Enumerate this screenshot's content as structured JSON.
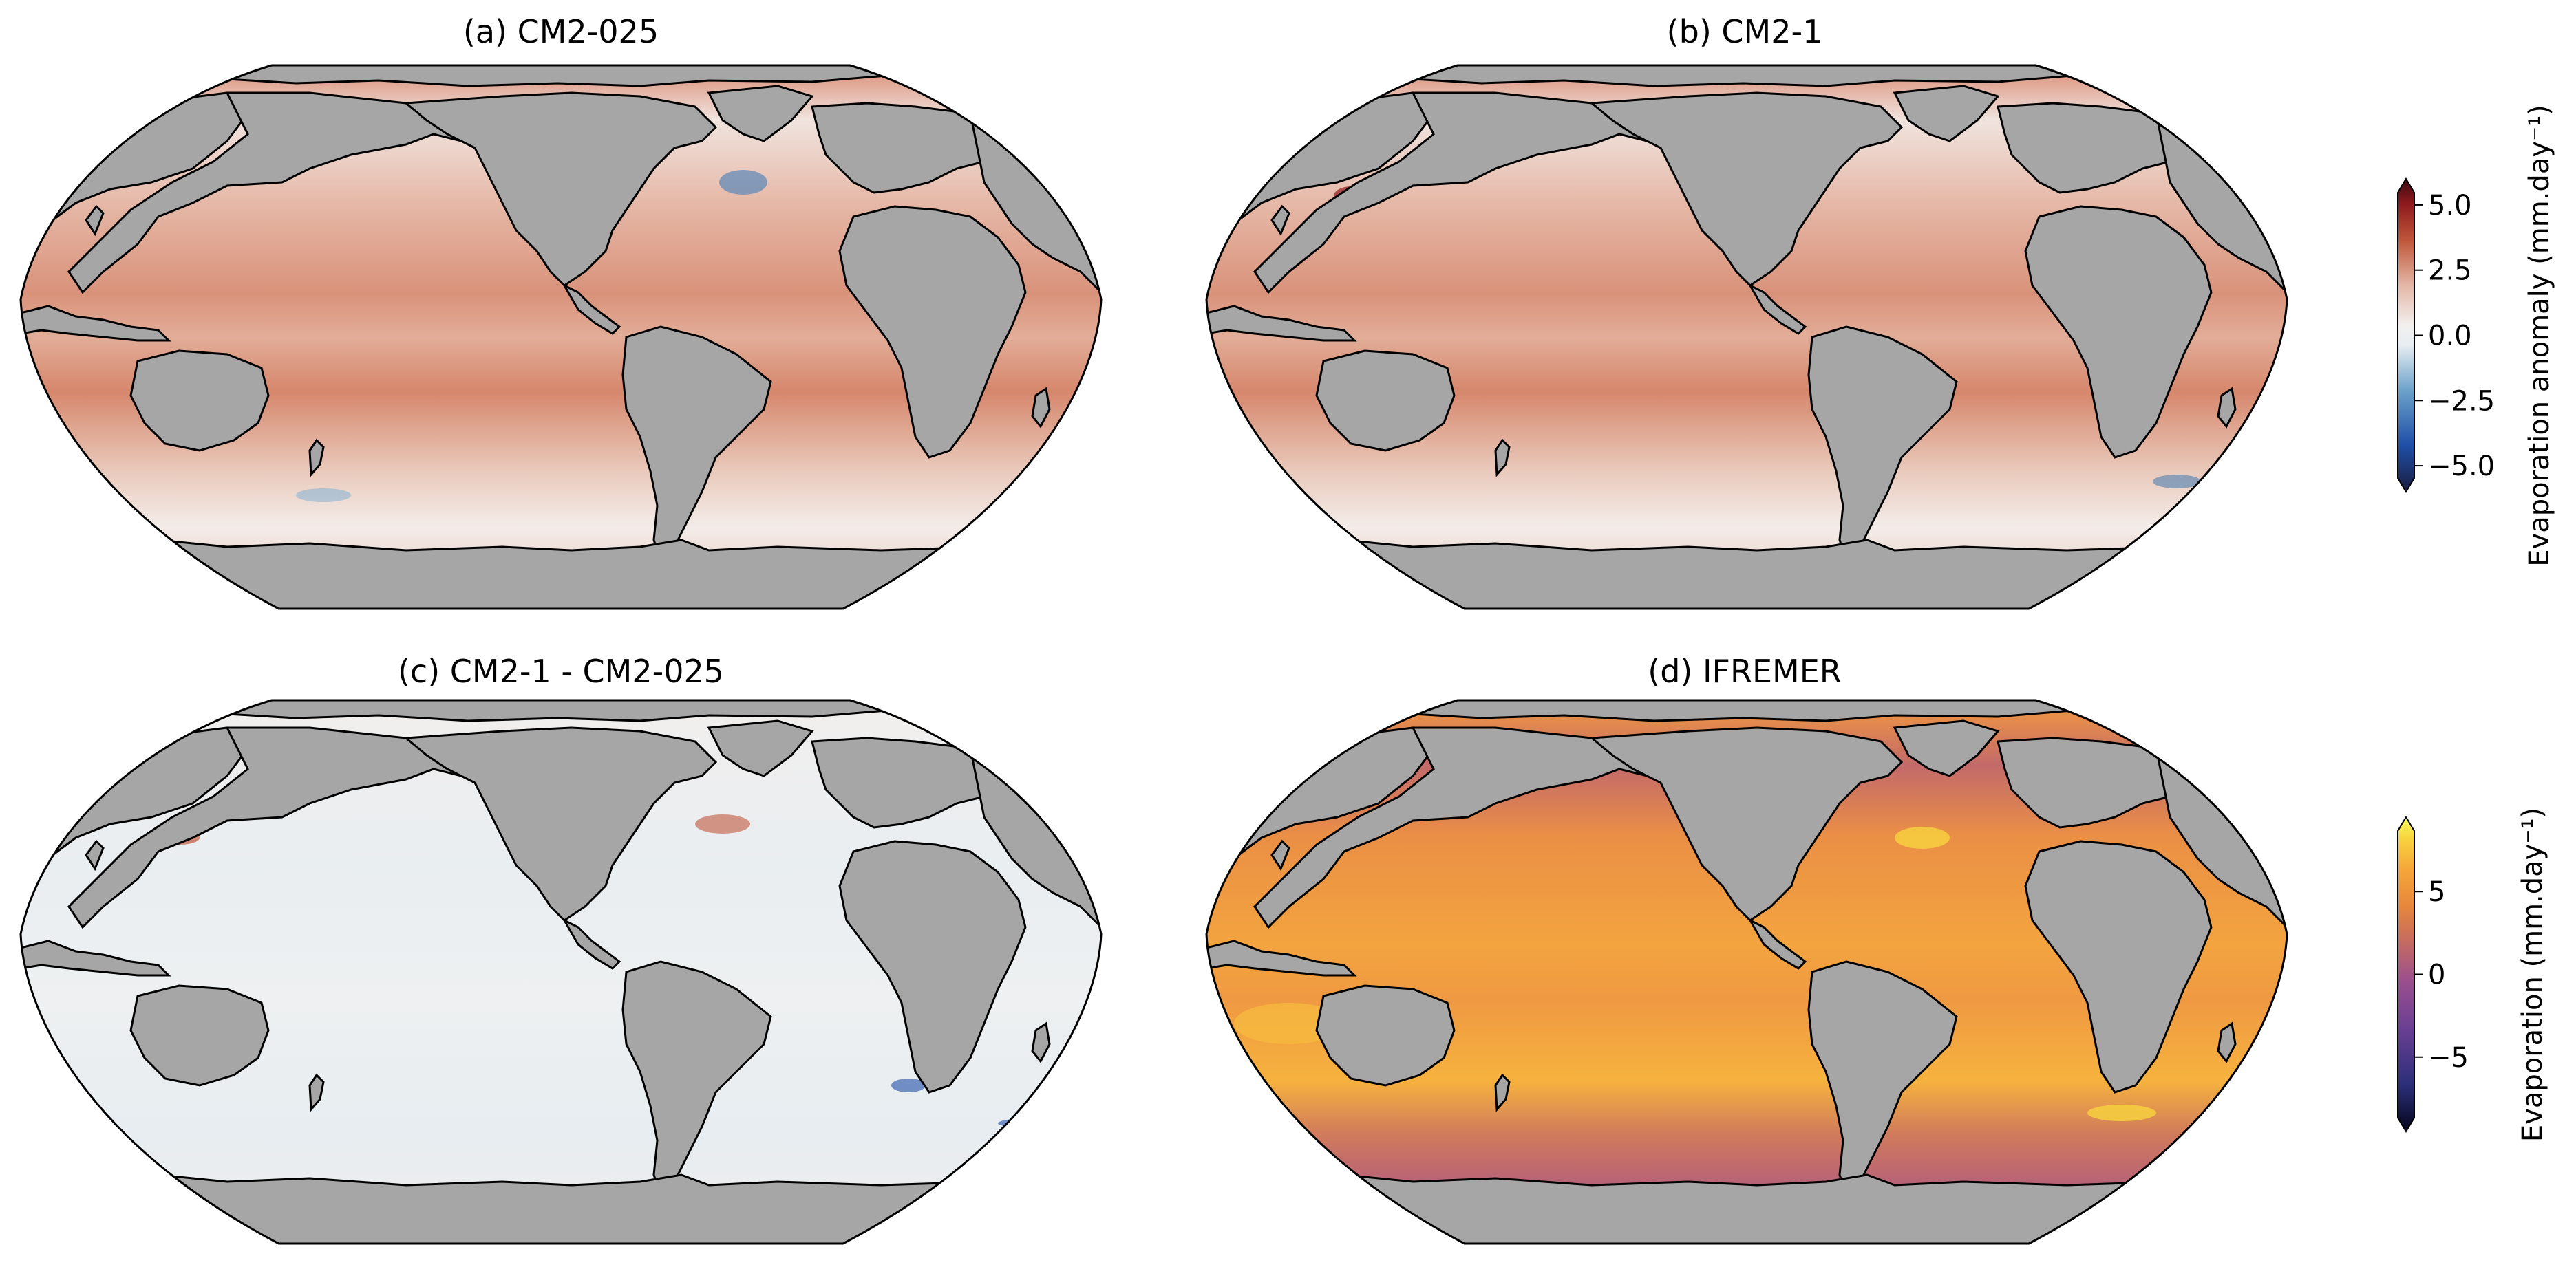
{
  "panels": [
    {
      "title": "(a) CM2-025",
      "field": "anomaly_a"
    },
    {
      "title": "(b) CM2-1",
      "field": "anomaly_b"
    },
    {
      "title": "(c) CM2-1 - CM2-025",
      "field": "difference"
    },
    {
      "title": "(d) IFREMER",
      "field": "evaporation"
    }
  ],
  "colorbars": [
    {
      "label": "Evaporation anomaly (mm.day⁻¹)",
      "ticks": [
        "5.0",
        "2.5",
        "0.0",
        "−2.5",
        "−5.0"
      ],
      "tick_values": [
        5.0,
        2.5,
        0.0,
        -2.5,
        -5.0
      ],
      "range": [
        -6,
        6
      ],
      "colormap": "balance",
      "colors": [
        "#1a1c3f",
        "#1f4fa8",
        "#6aa0c9",
        "#e8eef2",
        "#f2f0ef",
        "#e4b7a6",
        "#c0583c",
        "#8e1a1d",
        "#3c0912"
      ]
    },
    {
      "label": "Evaporation (mm.day⁻¹)",
      "ticks": [
        "5",
        "0",
        "−5"
      ],
      "tick_values": [
        5,
        0,
        -5
      ],
      "range": [
        -9.5,
        9.5
      ],
      "colormap": "thermal",
      "colors": [
        "#03051a",
        "#2c2f7a",
        "#6b3f93",
        "#9b4f8e",
        "#c46a62",
        "#e7883b",
        "#f5a53a",
        "#f8d33e",
        "#f8fb5c"
      ]
    }
  ],
  "colors": {
    "land": "#a6a6a6",
    "coast": "#000000",
    "anomaly_ocean": "#e0aa96",
    "difference_ocean": "#eeeeee",
    "ifremer_ocean": "#f2a042",
    "ifremer_southern": "#b9627a"
  }
}
